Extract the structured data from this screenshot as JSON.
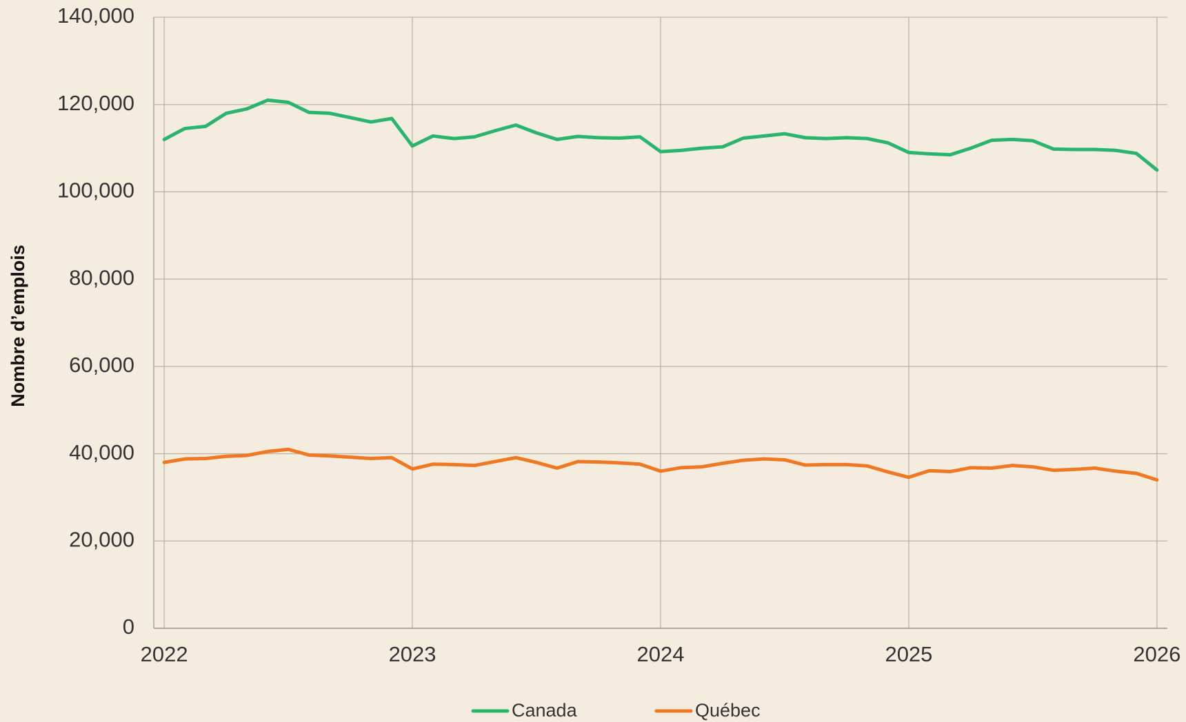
{
  "chart_data": {
    "type": "line",
    "y_label": "Nombre d’emplois",
    "x": [
      2022,
      2022.083,
      2022.167,
      2022.25,
      2022.333,
      2022.417,
      2022.5,
      2022.583,
      2022.667,
      2022.75,
      2022.833,
      2022.917,
      2023,
      2023.083,
      2023.167,
      2023.25,
      2023.333,
      2023.417,
      2023.5,
      2023.583,
      2023.667,
      2023.75,
      2023.833,
      2023.917,
      2024,
      2024.083,
      2024.167,
      2024.25,
      2024.333,
      2024.417,
      2024.5,
      2024.583,
      2024.667,
      2024.75,
      2024.833,
      2024.917,
      2025,
      2025.083,
      2025.167,
      2025.25,
      2025.333,
      2025.417,
      2025.5,
      2025.583,
      2025.667,
      2025.75,
      2025.833,
      2025.917,
      2026
    ],
    "series": [
      {
        "name": "Canada",
        "color": "#2bb46e",
        "values": [
          112000,
          114500,
          115000,
          118000,
          119000,
          121000,
          120500,
          118200,
          118000,
          117000,
          116000,
          116800,
          110500,
          112800,
          112200,
          112600,
          114000,
          115300,
          113500,
          112000,
          112700,
          112400,
          112300,
          112600,
          109200,
          109500,
          110000,
          110300,
          112300,
          112800,
          113300,
          112400,
          112200,
          112400,
          112200,
          111200,
          109000,
          108700,
          108500,
          110000,
          111800,
          112000,
          111700,
          109800,
          109700,
          109700,
          109500,
          108800,
          105000
        ]
      },
      {
        "name": "Québec",
        "color": "#f07822",
        "values": [
          38000,
          38800,
          38900,
          39400,
          39600,
          40500,
          41000,
          39700,
          39500,
          39200,
          38900,
          39100,
          36500,
          37600,
          37500,
          37300,
          38200,
          39100,
          38000,
          36700,
          38200,
          38100,
          37900,
          37600,
          36000,
          36800,
          37000,
          37800,
          38500,
          38800,
          38600,
          37400,
          37500,
          37500,
          37200,
          35800,
          34600,
          36100,
          35900,
          36800,
          36700,
          37300,
          37000,
          36200,
          36400,
          36700,
          36000,
          35500,
          34000
        ]
      }
    ],
    "xlim": [
      2021.958,
      2026.042
    ],
    "xticks": [
      2022,
      2023,
      2024,
      2025,
      2026
    ],
    "ylim": [
      0,
      140000
    ],
    "yticks": [
      0,
      {
        "value": 20000,
        "label": "20,000"
      },
      {
        "value": 40000,
        "label": "40,000"
      },
      {
        "value": 60000,
        "label": "60,000"
      },
      {
        "value": 80000,
        "label": "80,000"
      },
      {
        "value": 100000,
        "label": "100,000"
      },
      {
        "value": 120000,
        "label": "120,000"
      },
      {
        "value": 140000,
        "label": "140,000"
      }
    ],
    "grid": true,
    "legend": "bottom"
  }
}
